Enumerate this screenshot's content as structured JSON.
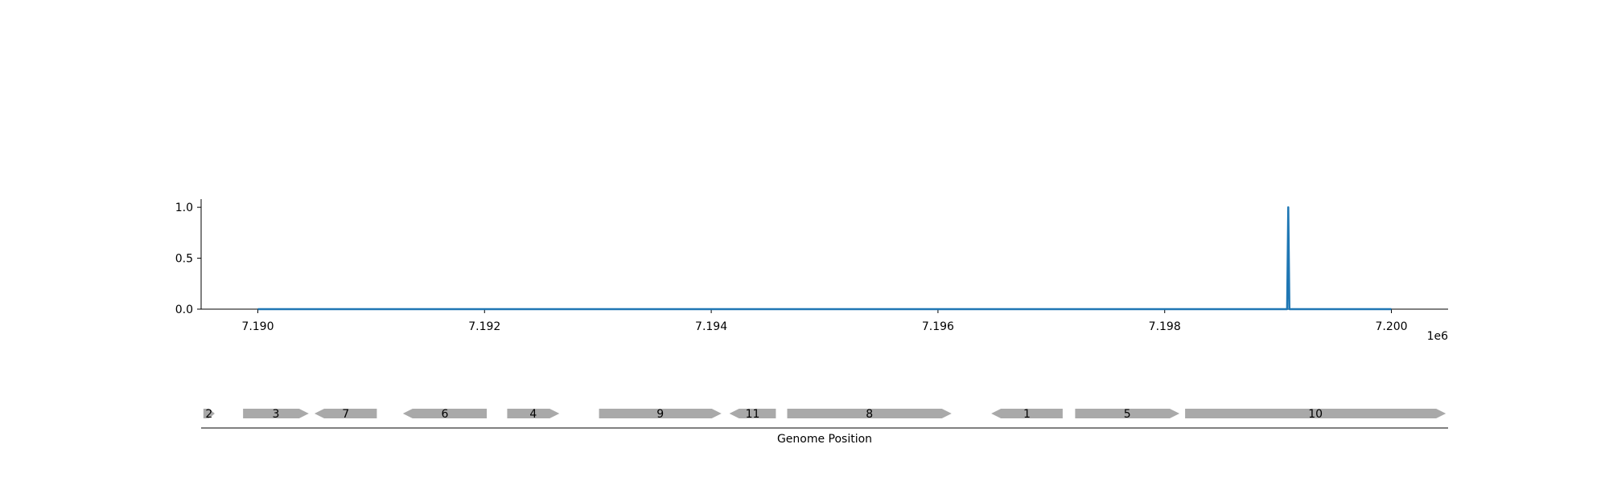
{
  "chart_data": [
    {
      "type": "line",
      "title": "",
      "xlabel": "",
      "ylabel": "",
      "x_offset_label": "1e6",
      "xlim": [
        7189500,
        7200500
      ],
      "ylim": [
        0,
        1.08
      ],
      "grid": false,
      "x_ticks": [
        7190000,
        7192000,
        7194000,
        7196000,
        7198000,
        7200000
      ],
      "x_tick_labels": [
        "7.190",
        "7.192",
        "7.194",
        "7.196",
        "7.198",
        "7.200"
      ],
      "y_ticks": [
        0.0,
        0.5,
        1.0
      ],
      "y_tick_labels": [
        "0.0",
        "0.5",
        "1.0"
      ],
      "series": [
        {
          "color": "#1f77b4",
          "x": [
            7190000,
            7199080,
            7199090,
            7199100,
            7200000
          ],
          "y": [
            0,
            0,
            1.0,
            0,
            0
          ]
        }
      ]
    },
    {
      "type": "gene_track",
      "xlabel": "Genome Position",
      "xlim": [
        7189500,
        7200500
      ],
      "feature_color": "#a9a9a9",
      "features": [
        {
          "label": "2",
          "start": 7189520,
          "end": 7189620,
          "strand": 1
        },
        {
          "label": "3",
          "start": 7189870,
          "end": 7190450,
          "strand": 1
        },
        {
          "label": "7",
          "start": 7190500,
          "end": 7191050,
          "strand": -1
        },
        {
          "label": "6",
          "start": 7191280,
          "end": 7192020,
          "strand": -1
        },
        {
          "label": "4",
          "start": 7192200,
          "end": 7192660,
          "strand": 1
        },
        {
          "label": "9",
          "start": 7193010,
          "end": 7194090,
          "strand": 1
        },
        {
          "label": "11",
          "start": 7194160,
          "end": 7194570,
          "strand": -1
        },
        {
          "label": "8",
          "start": 7194670,
          "end": 7196120,
          "strand": 1
        },
        {
          "label": "1",
          "start": 7196470,
          "end": 7197100,
          "strand": -1
        },
        {
          "label": "5",
          "start": 7197210,
          "end": 7198130,
          "strand": 1
        },
        {
          "label": "10",
          "start": 7198180,
          "end": 7200480,
          "strand": 1
        }
      ]
    }
  ]
}
